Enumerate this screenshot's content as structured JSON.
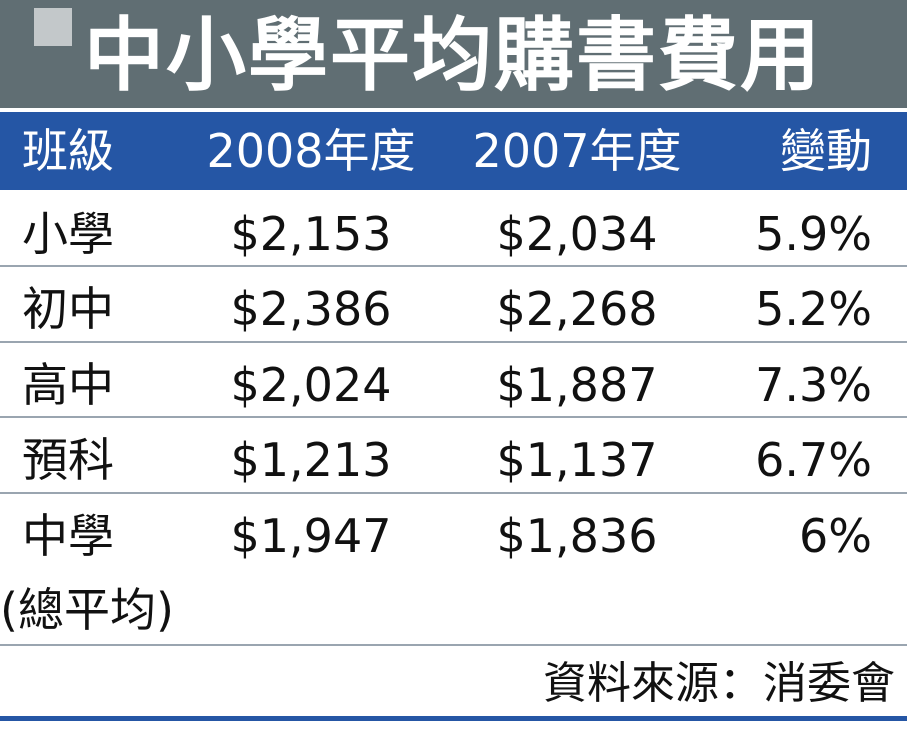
{
  "title": "中小學平均購書費用",
  "chart_data": {
    "type": "table",
    "title": "中小學平均購書費用",
    "columns": [
      "班級",
      "2008年度",
      "2007年度",
      "變動"
    ],
    "rows": [
      [
        "小學",
        "$2,153",
        "$2,034",
        "5.9%"
      ],
      [
        "初中",
        "$2,386",
        "$2,268",
        "5.2%"
      ],
      [
        "高中",
        "$2,024",
        "$1,887",
        "7.3%"
      ],
      [
        "預科",
        "$1,213",
        "$1,137",
        "6.7%"
      ],
      [
        "中學",
        "$1,947",
        "$1,836",
        "6%"
      ]
    ],
    "last_row_label_continuation": "(總平均)",
    "source": "資料來源：消委會"
  },
  "colors": {
    "title_bar": "#606e73",
    "header_bar": "#2556a5",
    "title_text": "#ffffff"
  }
}
